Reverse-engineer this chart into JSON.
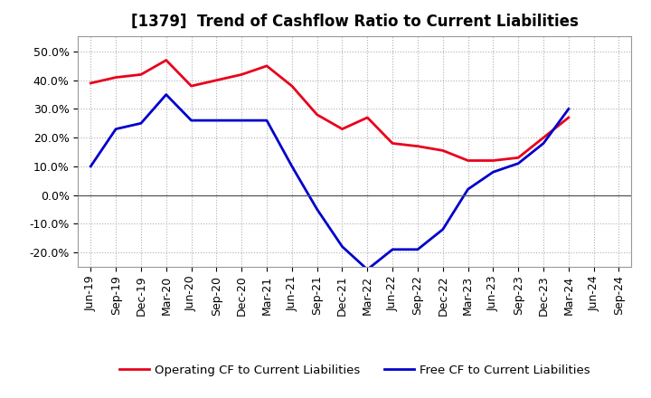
{
  "title": "[1379]  Trend of Cashflow Ratio to Current Liabilities",
  "x_labels": [
    "Jun-19",
    "Sep-19",
    "Dec-19",
    "Mar-20",
    "Jun-20",
    "Sep-20",
    "Dec-20",
    "Mar-21",
    "Jun-21",
    "Sep-21",
    "Dec-21",
    "Mar-22",
    "Jun-22",
    "Sep-22",
    "Dec-22",
    "Mar-23",
    "Jun-23",
    "Sep-23",
    "Dec-23",
    "Mar-24",
    "Jun-24",
    "Sep-24"
  ],
  "operating_cf": [
    0.39,
    0.41,
    0.42,
    0.47,
    0.38,
    0.4,
    0.42,
    0.45,
    0.38,
    0.28,
    0.23,
    0.27,
    0.18,
    0.17,
    0.155,
    0.12,
    0.12,
    0.13,
    0.2,
    0.27,
    null,
    null
  ],
  "free_cf": [
    0.1,
    0.23,
    0.25,
    0.35,
    0.26,
    0.26,
    0.26,
    0.26,
    0.1,
    -0.05,
    -0.18,
    -0.26,
    -0.19,
    -0.19,
    -0.12,
    0.02,
    0.08,
    0.11,
    0.18,
    0.3,
    null,
    null
  ],
  "operating_color": "#e8001c",
  "free_color": "#0000cc",
  "ylim": [
    -0.25,
    0.555
  ],
  "yticks": [
    -0.2,
    -0.1,
    0.0,
    0.1,
    0.2,
    0.3,
    0.4,
    0.5
  ],
  "legend_operating": "Operating CF to Current Liabilities",
  "legend_free": "Free CF to Current Liabilities",
  "background_color": "#ffffff",
  "plot_bg_color": "#ffffff",
  "grid_color": "#b0b0b0",
  "title_fontsize": 12,
  "tick_fontsize": 9,
  "legend_fontsize": 9.5
}
